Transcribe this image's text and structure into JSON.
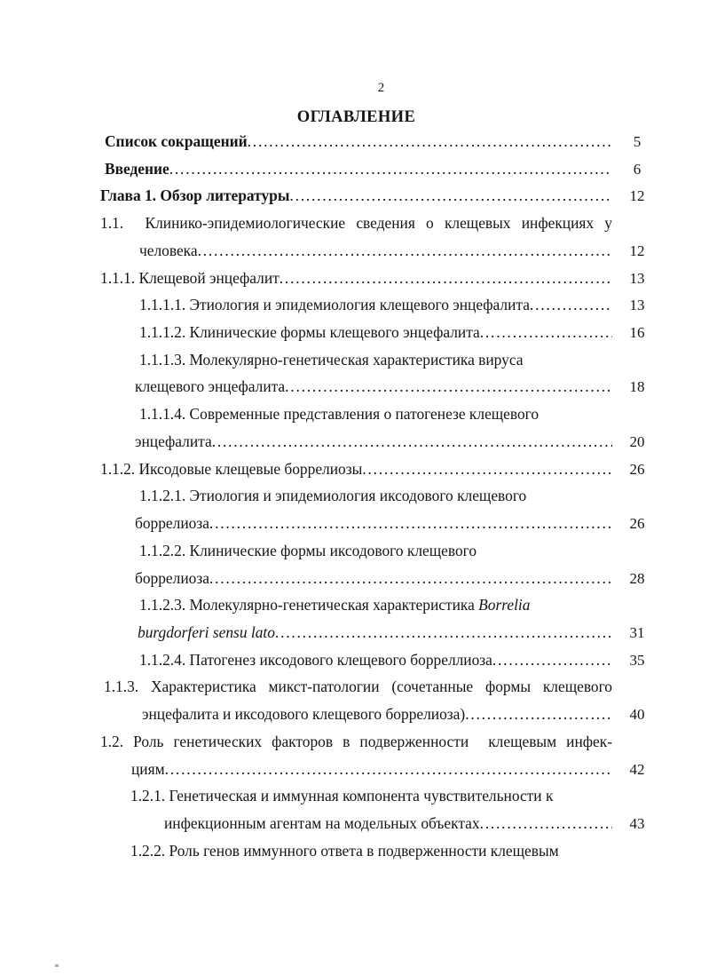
{
  "page": {
    "number": "2",
    "heading": "ОГЛАВЛЕНИЕ"
  },
  "toc": {
    "rows": [
      {
        "text": "Список сокращений",
        "bold": true,
        "indent": 5,
        "leader": true,
        "page": "5"
      },
      {
        "text": "Введение",
        "bold": true,
        "indent": 5,
        "leader": true,
        "page": "6"
      },
      {
        "text": "Глава 1. Обзор литературы",
        "bold": true,
        "indent": 0,
        "leader": true,
        "page": "12"
      },
      {
        "text": "1.1.  Клинико-эпидемиологические сведения о клещевых инфекциях у",
        "indent": 0,
        "spread": true
      },
      {
        "text": "человека",
        "indent": 44,
        "leader": true,
        "page": "12"
      },
      {
        "text": "1.1.1. Клещевой энцефалит",
        "indent": 0,
        "leader": true,
        "page": "13"
      },
      {
        "text": "1.1.1.1. Этиология и эпидемиология клещевого энцефалита",
        "indent": 44,
        "leader": true,
        "page": "13"
      },
      {
        "text": "1.1.1.2. Клинические формы клещевого энцефалита",
        "indent": 44,
        "leader": true,
        "page": "16"
      },
      {
        "text": "1.1.1.3. Молекулярно-генетическая характеристика вируса",
        "indent": 44
      },
      {
        "text": "клещевого энцефалита",
        "indent": 39,
        "leader": true,
        "page": "18"
      },
      {
        "text": "1.1.1.4. Современные представления о патогенезе клещевого",
        "indent": 44
      },
      {
        "text": "энцефалита",
        "indent": 39,
        "leader": true,
        "page": "20"
      },
      {
        "text": "1.1.2. Иксодовые клещевые боррелиозы",
        "indent": 0,
        "leader": true,
        "page": "26"
      },
      {
        "text": "1.1.2.1. Этиология и эпидемиология иксодового клещевого",
        "indent": 44
      },
      {
        "text": "боррелиоза",
        "indent": 39,
        "leader": true,
        "page": "26"
      },
      {
        "text": "1.1.2.2. Клинические формы иксодового клещевого",
        "indent": 44
      },
      {
        "text": "боррелиоза",
        "indent": 39,
        "leader": true,
        "page": "28"
      },
      {
        "parts": [
          {
            "text": "1.1.2.3. Молекулярно-генетическая характеристика "
          },
          {
            "text": "Borrelia",
            "italic": true
          }
        ],
        "indent": 44
      },
      {
        "parts": [
          {
            "text": "burgdorferi sensu lato",
            "italic": true
          }
        ],
        "indent": 42,
        "leader": true,
        "page": "31"
      },
      {
        "text": "1.1.2.4. Патогенез иксодового клещевого борреллиоза",
        "indent": 44,
        "leader": true,
        "page": "35"
      },
      {
        "text": "1.1.3. Характеристика микст-патологии (сочетанные формы клещевого",
        "indent": 4,
        "spread": true
      },
      {
        "text": "энцефалита и иксодового клещевого боррелиоза)",
        "indent": 47,
        "leader": true,
        "page": "40"
      },
      {
        "text": "1.2. Роль генетических факторов в подверженности  клещевым инфек-",
        "indent": 0,
        "spread": true
      },
      {
        "text": "циям",
        "indent": 35,
        "leader": true,
        "page": "42"
      },
      {
        "text": "1.2.1. Генетическая и иммунная компонента чувствительности к",
        "indent": 34
      },
      {
        "text": "инфекционным агентам на модельных объектах",
        "indent": 72,
        "leader": true,
        "page": "43"
      },
      {
        "text": "1.2.2. Роль генов иммунного ответа в подверженности клещевым",
        "indent": 34
      }
    ]
  }
}
